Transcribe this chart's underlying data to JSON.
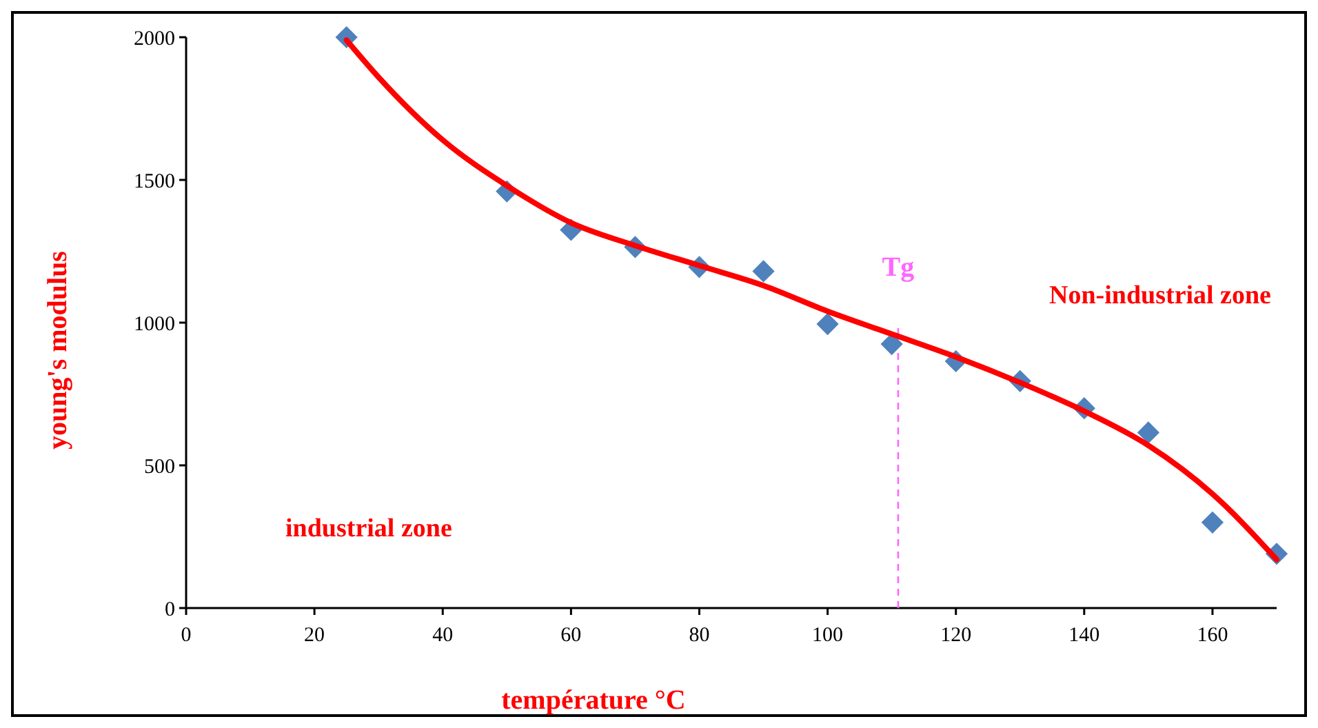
{
  "chart_data": {
    "type": "scatter",
    "xlabel": "température °C",
    "ylabel": "young's modulus",
    "xlim": [
      0,
      170
    ],
    "ylim": [
      0,
      2000
    ],
    "xticks": [
      0,
      20,
      40,
      60,
      80,
      100,
      120,
      140,
      160
    ],
    "yticks": [
      0,
      500,
      1000,
      1500,
      2000
    ],
    "grid": false,
    "marker": "diamond",
    "series": [
      {
        "color": "#4f81bd",
        "x": [
          25,
          50,
          60,
          70,
          80,
          90,
          100,
          110,
          120,
          130,
          140,
          150,
          160,
          170
        ],
        "values": [
          2000,
          1460,
          1325,
          1265,
          1195,
          1180,
          995,
          925,
          865,
          795,
          700,
          615,
          300,
          190
        ]
      },
      {
        "type": "line",
        "color": "#ff0000",
        "marker": "none",
        "x": [
          25,
          30,
          40,
          50,
          60,
          70,
          80,
          90,
          100,
          110,
          120,
          130,
          140,
          150,
          160,
          170
        ],
        "values": [
          1990,
          1860,
          1640,
          1480,
          1350,
          1270,
          1200,
          1130,
          1040,
          960,
          880,
          790,
          690,
          570,
          400,
          170
        ]
      }
    ],
    "ref_lines": [
      {
        "axis": "x",
        "value": 111,
        "label": "Tg",
        "color": "#ff66ff",
        "line_style": "dashed"
      }
    ],
    "annotations": [
      "industrial zone",
      "Non-industrial zone"
    ]
  }
}
